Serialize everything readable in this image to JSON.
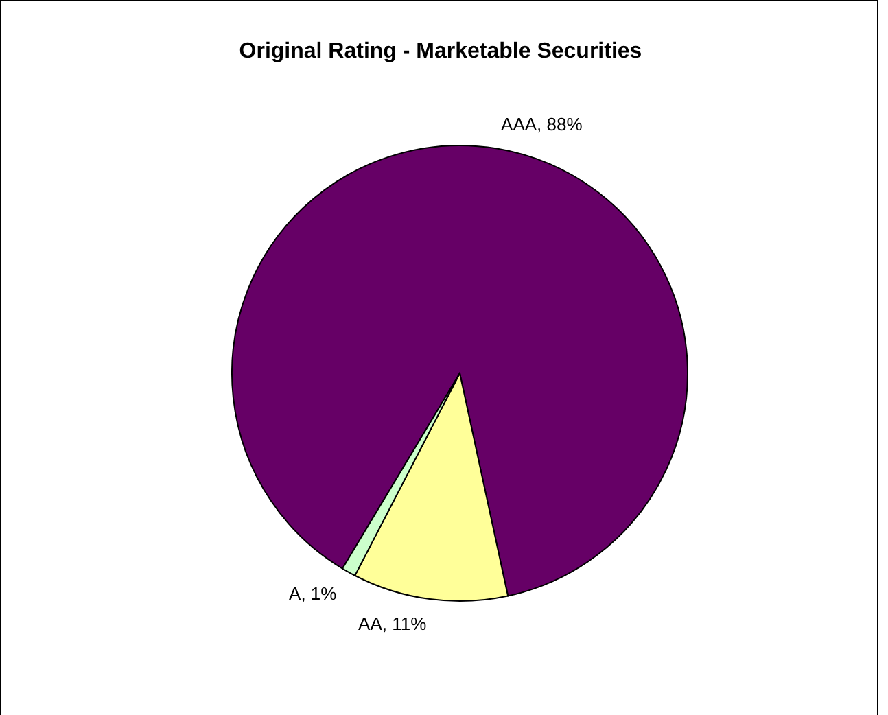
{
  "chart_data": {
    "type": "pie",
    "title": "Original Rating - Marketable Securities",
    "categories": [
      "AAA",
      "AA",
      "A"
    ],
    "values": [
      88,
      11,
      1
    ],
    "value_labels": [
      "88%",
      "11%",
      "1%"
    ],
    "colors": [
      "#660066",
      "#ffff99",
      "#ccffcc"
    ]
  }
}
